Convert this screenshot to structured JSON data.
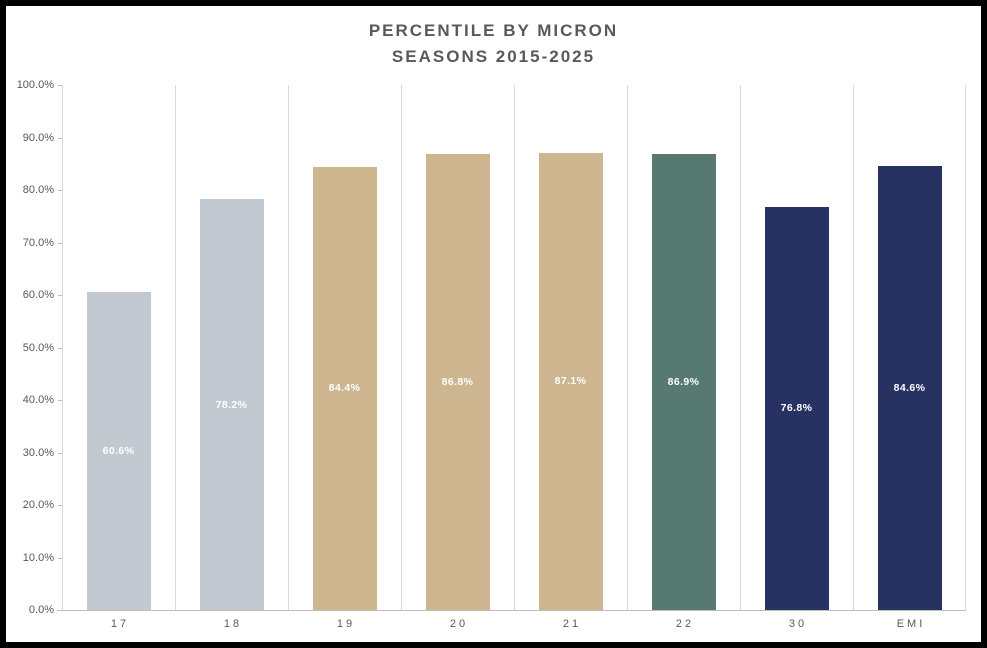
{
  "chart_data": {
    "type": "bar",
    "title_line1": "PERCENTILE BY MICRON",
    "title_line2": "SEASONS 2015-2025",
    "categories": [
      "17",
      "18",
      "19",
      "20",
      "21",
      "22",
      "30",
      "EMI"
    ],
    "values": [
      60.6,
      78.2,
      84.4,
      86.8,
      87.1,
      86.9,
      76.8,
      84.6
    ],
    "data_labels": [
      "60.6%",
      "78.2%",
      "84.4%",
      "86.8%",
      "87.1%",
      "86.9%",
      "76.8%",
      "84.6%"
    ],
    "bar_colors": [
      "#c2c9d1",
      "#c2c9d1",
      "#ccb58f",
      "#ccb58f",
      "#ccb58f",
      "#567a71",
      "#273162",
      "#273162"
    ],
    "y_tick_labels": [
      "0.0%",
      "10.0%",
      "20.0%",
      "30.0%",
      "40.0%",
      "50.0%",
      "60.0%",
      "70.0%",
      "80.0%",
      "90.0%",
      "100.0%"
    ],
    "y_tick_values": [
      0,
      10,
      20,
      30,
      40,
      50,
      60,
      70,
      80,
      90,
      100
    ],
    "ylim": [
      0,
      100
    ],
    "xlabel": "",
    "ylabel": "",
    "legend": "none",
    "gridlines": "vertical category separators only",
    "colors": {
      "text": "#595959",
      "gridline": "#d9d9d9",
      "axis_line": "#bfbfbf",
      "data_label": "#ffffff",
      "frame_border": "#000000",
      "background": "#ffffff"
    }
  }
}
